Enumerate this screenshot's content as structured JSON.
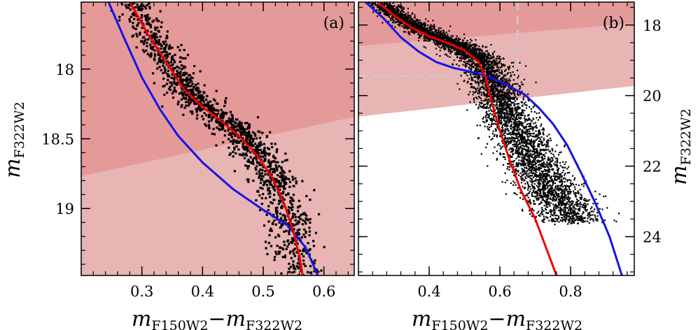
{
  "chart_data": [
    {
      "type": "scatter",
      "panel_label": "(a)",
      "xlabel": {
        "main1": "m",
        "sub1": "F150W2",
        "dash": "−",
        "main2": "m",
        "sub2": "F322W2"
      },
      "ylabel": {
        "main": "m",
        "sub": "F322W2"
      },
      "xlim": [
        0.2,
        0.65
      ],
      "ylim": [
        19.48,
        17.52
      ],
      "ylim_note": "inverted (brighter at top)",
      "xticks": [
        0.3,
        0.4,
        0.5,
        0.6
      ],
      "xtick_labels": [
        "0.3",
        "0.4",
        "0.5",
        "0.6"
      ],
      "yticks": [
        18,
        18.5,
        19
      ],
      "ytick_labels": [
        "18",
        "18.5",
        "19"
      ],
      "y_axis_side": "left",
      "regions": [
        {
          "name": "dark",
          "color": "#e59a9a",
          "boundary": [
            [
              0.2,
              18.77
            ],
            [
              0.65,
              18.34
            ]
          ]
        },
        {
          "name": "light",
          "color": "#e8b4b4"
        }
      ],
      "series": [
        {
          "color": "#ee0000",
          "points": [
            [
              0.28,
              17.52
            ],
            [
              0.31,
              17.75
            ],
            [
              0.34,
              17.95
            ],
            [
              0.37,
              18.15
            ],
            [
              0.4,
              18.27
            ],
            [
              0.43,
              18.37
            ],
            [
              0.46,
              18.48
            ],
            [
              0.49,
              18.62
            ],
            [
              0.515,
              18.78
            ],
            [
              0.535,
              18.97
            ],
            [
              0.55,
              19.17
            ],
            [
              0.56,
              19.35
            ],
            [
              0.565,
              19.48
            ]
          ]
        },
        {
          "color": "#1414e6",
          "points": [
            [
              0.245,
              17.52
            ],
            [
              0.27,
              17.77
            ],
            [
              0.3,
              18.06
            ],
            [
              0.33,
              18.29
            ],
            [
              0.36,
              18.48
            ],
            [
              0.4,
              18.67
            ],
            [
              0.45,
              18.86
            ],
            [
              0.5,
              19.01
            ],
            [
              0.54,
              19.12
            ],
            [
              0.57,
              19.28
            ],
            [
              0.59,
              19.48
            ]
          ]
        }
      ],
      "scatter": {
        "color": "#000000",
        "n_points": 1400,
        "ridge_x": [
          0.285,
          0.315,
          0.345,
          0.375,
          0.405,
          0.435,
          0.465,
          0.49,
          0.515,
          0.535,
          0.55,
          0.56
        ],
        "ridge_y": [
          17.52,
          17.75,
          17.95,
          18.15,
          18.27,
          18.37,
          18.48,
          18.62,
          18.78,
          18.97,
          19.17,
          19.48
        ],
        "spread": [
          0.015,
          0.02
        ]
      }
    },
    {
      "type": "scatter",
      "panel_label": "(b)",
      "xlabel": {
        "main1": "m",
        "sub1": "F150W2",
        "dash": "−",
        "main2": "m",
        "sub2": "F322W2"
      },
      "ylabel": {
        "main": "m",
        "sub": "F322W2"
      },
      "xlim": [
        0.2,
        0.98
      ],
      "ylim": [
        25.1,
        17.35
      ],
      "ylim_note": "inverted (brighter at top)",
      "xticks": [
        0.4,
        0.6,
        0.8
      ],
      "xtick_labels": [
        "0.4",
        "0.6",
        "0.8"
      ],
      "yticks": [
        18,
        20,
        22,
        24
      ],
      "ytick_labels": [
        "18",
        "20",
        "22",
        "24"
      ],
      "y_axis_side": "right",
      "regions": [
        {
          "name": "dark",
          "color": "#e59a9a",
          "boundary": [
            [
              0.2,
              18.6
            ],
            [
              0.98,
              17.95
            ]
          ]
        },
        {
          "name": "light",
          "color": "#e8b4b4",
          "boundary": [
            [
              0.2,
              20.6
            ],
            [
              0.98,
              19.72
            ]
          ]
        }
      ],
      "reference_lines": {
        "x": 0.65,
        "y": 19.45,
        "color": "#cccccc",
        "style": "dashed"
      },
      "series": [
        {
          "color": "#ee0000",
          "points": [
            [
              0.255,
              17.35
            ],
            [
              0.3,
              17.72
            ],
            [
              0.35,
              18.07
            ],
            [
              0.4,
              18.32
            ],
            [
              0.45,
              18.5
            ],
            [
              0.5,
              18.72
            ],
            [
              0.54,
              19.05
            ],
            [
              0.56,
              19.5
            ],
            [
              0.58,
              20.3
            ],
            [
              0.6,
              21.0
            ],
            [
              0.63,
              21.9
            ],
            [
              0.66,
              22.7
            ],
            [
              0.7,
              23.5
            ],
            [
              0.73,
              24.3
            ],
            [
              0.76,
              25.1
            ]
          ]
        },
        {
          "color": "#1414e6",
          "points": [
            [
              0.22,
              17.35
            ],
            [
              0.27,
              17.8
            ],
            [
              0.32,
              18.35
            ],
            [
              0.37,
              18.75
            ],
            [
              0.42,
              19.05
            ],
            [
              0.47,
              19.22
            ],
            [
              0.52,
              19.33
            ],
            [
              0.57,
              19.47
            ],
            [
              0.62,
              19.7
            ],
            [
              0.67,
              19.97
            ],
            [
              0.71,
              20.35
            ],
            [
              0.75,
              20.8
            ],
            [
              0.79,
              21.4
            ],
            [
              0.83,
              22.2
            ],
            [
              0.87,
              23.05
            ],
            [
              0.91,
              24.0
            ],
            [
              0.945,
              25.1
            ]
          ]
        }
      ],
      "scatter": {
        "color": "#000000",
        "n_points": 5200,
        "ridge_x": [
          0.26,
          0.32,
          0.4,
          0.48,
          0.54,
          0.57,
          0.6,
          0.64,
          0.68,
          0.73,
          0.78
        ],
        "ridge_y": [
          17.35,
          17.8,
          18.25,
          18.6,
          19.0,
          19.6,
          20.4,
          21.2,
          22.0,
          22.8,
          23.6
        ],
        "spread": [
          0.02,
          0.045
        ]
      }
    }
  ]
}
